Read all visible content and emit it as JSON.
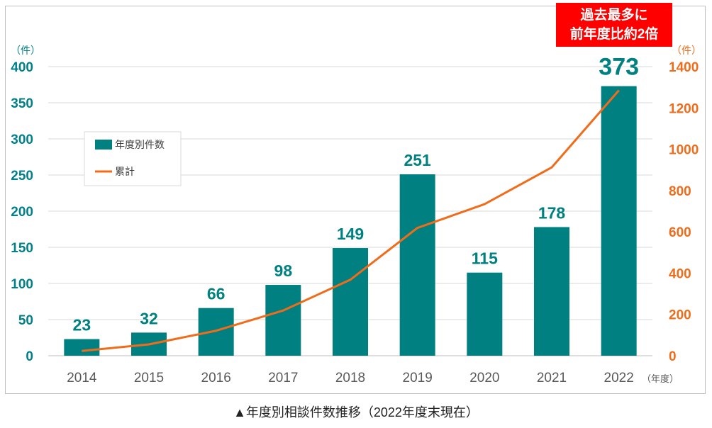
{
  "chart_data": {
    "type": "bar+line",
    "categories": [
      "2014",
      "2015",
      "2016",
      "2017",
      "2018",
      "2019",
      "2020",
      "2021",
      "2022"
    ],
    "series": [
      {
        "name": "年度別件数",
        "type": "bar",
        "axis": "left",
        "color": "#008080",
        "values": [
          23,
          32,
          66,
          98,
          149,
          251,
          115,
          178,
          373
        ],
        "value_labels": [
          "23",
          "32",
          "66",
          "98",
          "149",
          "251",
          "115",
          "178",
          "373"
        ]
      },
      {
        "name": "累計",
        "type": "line",
        "axis": "right",
        "color": "#f06c1a",
        "values": [
          23,
          55,
          121,
          219,
          368,
          619,
          734,
          912,
          1285
        ]
      }
    ],
    "y_left": {
      "range": [
        0,
        400
      ],
      "ticks": [
        0,
        50,
        100,
        150,
        200,
        250,
        300,
        350,
        400
      ],
      "tick_labels": [
        "0",
        "50",
        "100",
        "150",
        "200",
        "250",
        "300",
        "350",
        "400"
      ],
      "unit_label": "（件）",
      "color": "#00808a"
    },
    "y_right": {
      "range": [
        0,
        1400
      ],
      "ticks": [
        0,
        200,
        400,
        600,
        800,
        1000,
        1200,
        1400
      ],
      "tick_labels": [
        "0",
        "200",
        "400",
        "600",
        "800",
        "1000",
        "1200",
        "1400"
      ],
      "unit_label": "（件）",
      "color": "#f06c1a"
    },
    "x_unit_label": "（年度）",
    "grid": true,
    "legend_position": "upper-left"
  },
  "callout": {
    "line1": "過去最多に",
    "line2": "前年度比約2倍"
  },
  "caption": "▲年度別相談件数推移（2022年度末現在）"
}
